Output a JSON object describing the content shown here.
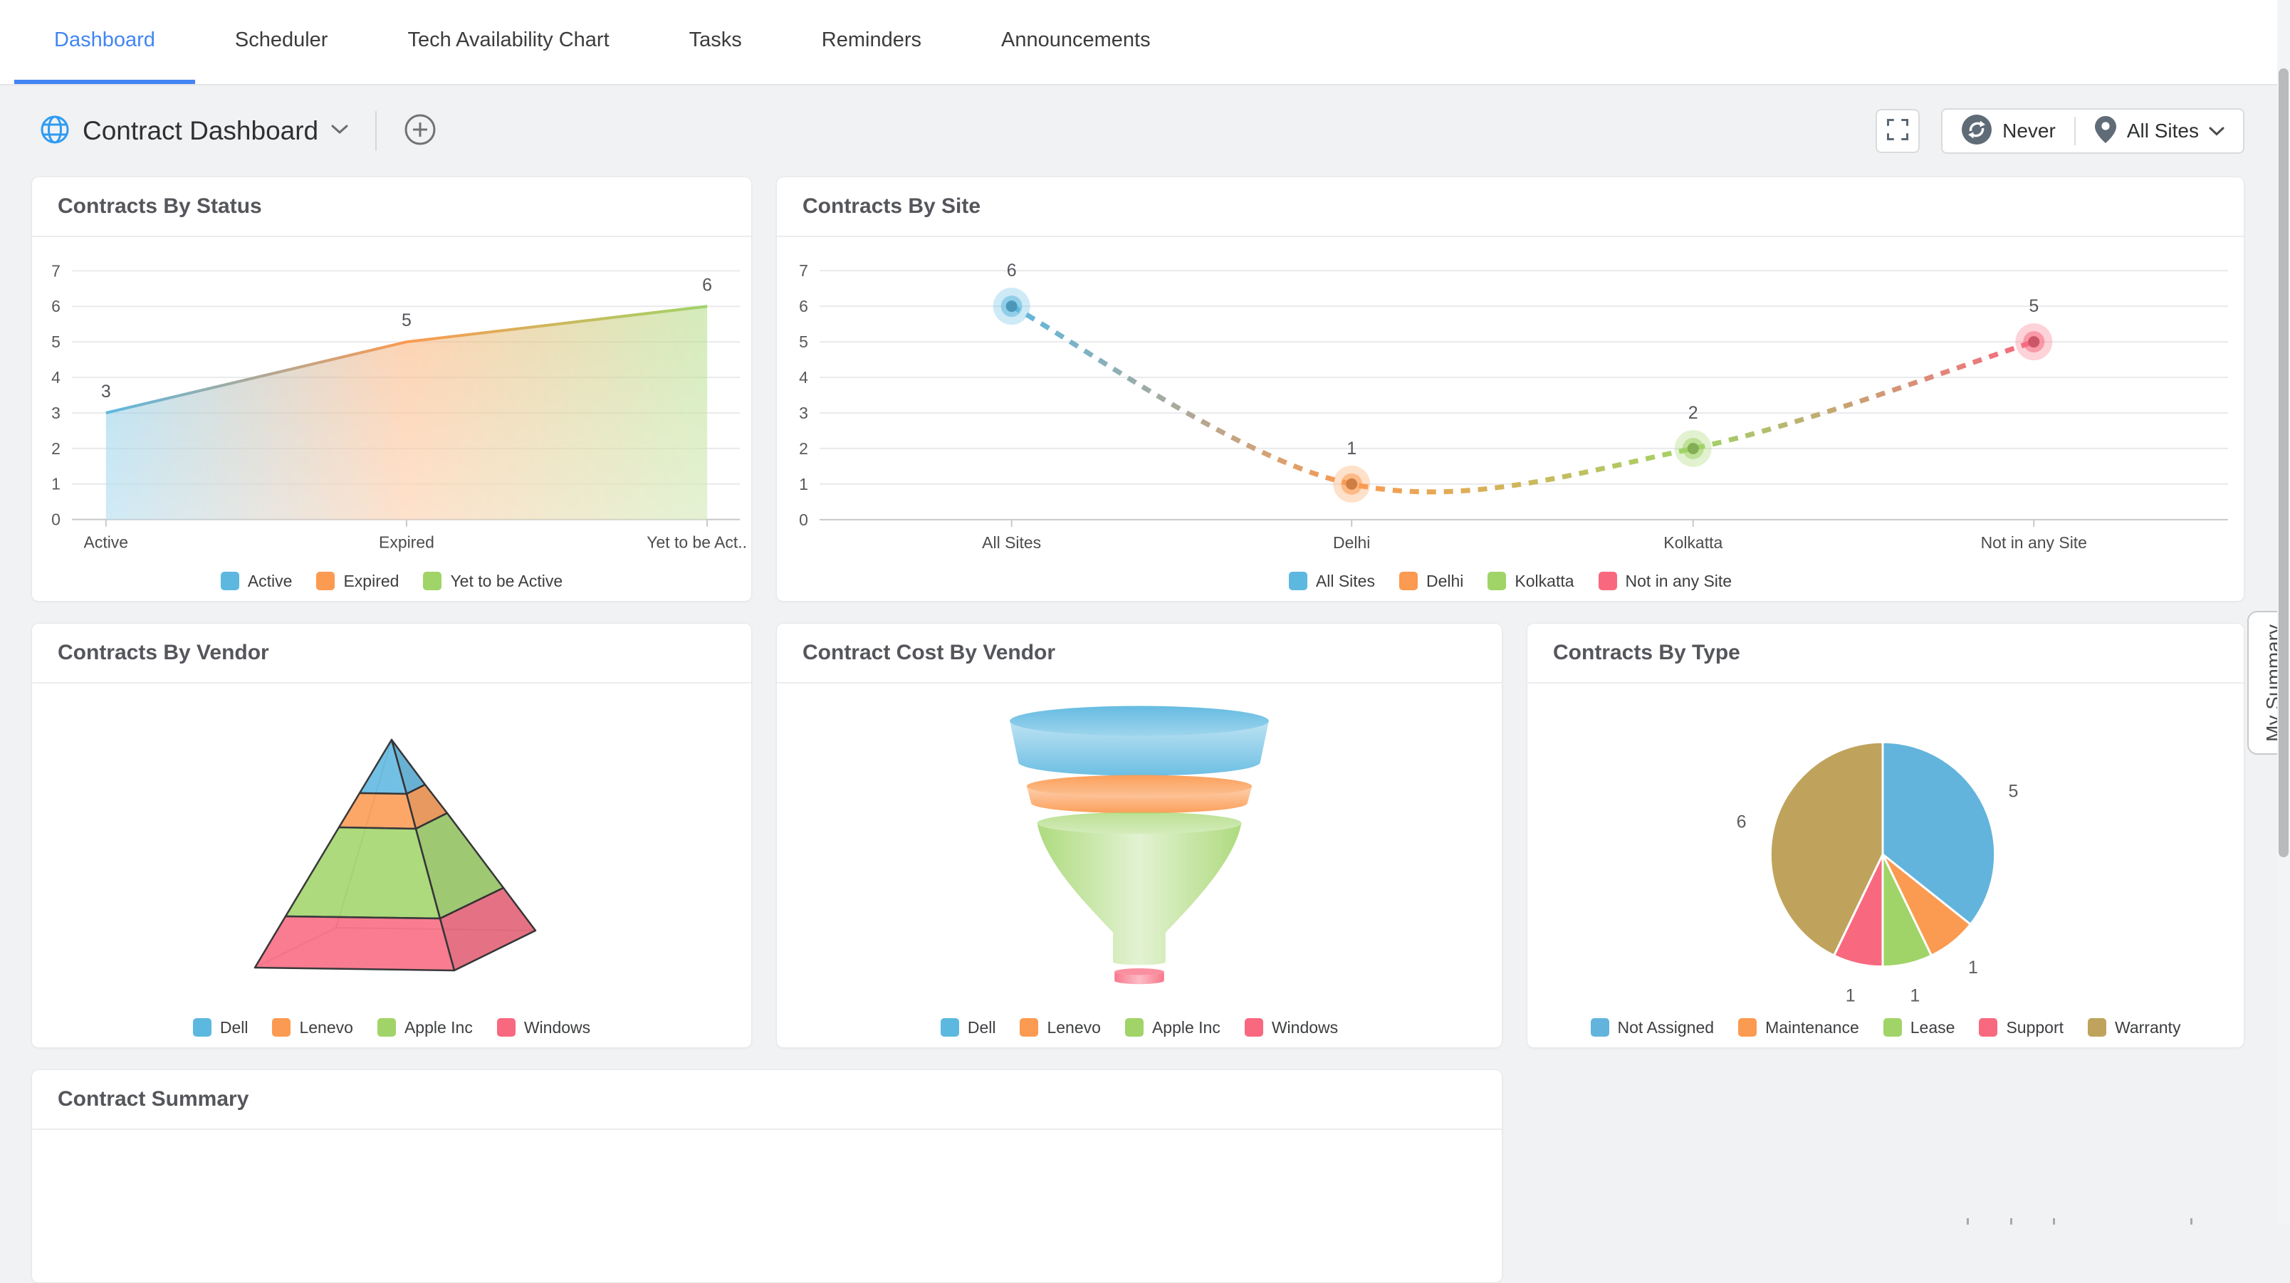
{
  "nav": {
    "tabs": [
      {
        "label": "Dashboard",
        "active": true
      },
      {
        "label": "Scheduler",
        "active": false
      },
      {
        "label": "Tech Availability Chart",
        "active": false
      },
      {
        "label": "Tasks",
        "active": false
      },
      {
        "label": "Reminders",
        "active": false
      },
      {
        "label": "Announcements",
        "active": false
      }
    ]
  },
  "toolbar": {
    "title": "Contract Dashboard",
    "refresh_label": "Never",
    "site_label": "All Sites",
    "icons": {
      "globe": "globe-icon",
      "chevron": "chevron-down-icon",
      "add": "plus-circle-icon",
      "fullscreen": "fullscreen-icon",
      "refresh": "refresh-icon",
      "pin": "location-pin-icon"
    }
  },
  "side_tab": {
    "label": "My Summary"
  },
  "palette": {
    "accent_blue": "#4285f4",
    "page_bg": "#f1f2f4",
    "card_title": "#55565b"
  },
  "chart_data": [
    {
      "id": "status",
      "type": "area",
      "title": "Contracts By Status",
      "categories": [
        "Active",
        "Expired",
        "Yet to be Active"
      ],
      "x_tick_labels": [
        "Active",
        "Expired",
        "Yet to be Act.."
      ],
      "values": [
        3,
        5,
        6
      ],
      "ylim": [
        0,
        7
      ],
      "y_ticks": [
        0,
        1,
        2,
        3,
        4,
        5,
        6,
        7
      ],
      "grid": true,
      "legend_position": "bottom",
      "series_colors": [
        "#5db8e0",
        "#fb9a51",
        "#a0d468"
      ]
    },
    {
      "id": "site",
      "type": "line",
      "line_style": "dotted",
      "title": "Contracts By Site",
      "categories": [
        "All Sites",
        "Delhi",
        "Kolkatta",
        "Not in any Site"
      ],
      "values": [
        6,
        1,
        2,
        5
      ],
      "ylim": [
        0,
        7
      ],
      "y_ticks": [
        0,
        1,
        2,
        3,
        4,
        5,
        6,
        7
      ],
      "grid": true,
      "legend_position": "bottom",
      "series_colors": [
        "#5db8e0",
        "#fb9a51",
        "#a0d468",
        "#f8697f"
      ]
    },
    {
      "id": "vendor",
      "type": "pyramid",
      "title": "Contracts By Vendor",
      "categories": [
        "Dell",
        "Lenevo",
        "Apple Inc",
        "Windows"
      ],
      "legend_position": "bottom",
      "series_colors": [
        "#5db8e0",
        "#fb9a51",
        "#a0d468",
        "#f8697f"
      ]
    },
    {
      "id": "cost",
      "type": "funnel",
      "title": "Contract Cost By Vendor",
      "categories": [
        "Dell",
        "Lenevo",
        "Apple Inc",
        "Windows"
      ],
      "legend_position": "bottom",
      "series_colors": [
        "#5db8e0",
        "#fb9a51",
        "#a0d468",
        "#f8697f"
      ]
    },
    {
      "id": "type",
      "type": "pie",
      "title": "Contracts By Type",
      "categories": [
        "Not Assigned",
        "Maintenance",
        "Lease",
        "Support",
        "Warranty"
      ],
      "values": [
        5,
        1,
        1,
        1,
        6
      ],
      "legend_position": "bottom",
      "series_colors": [
        "#62b4dc",
        "#fb9a51",
        "#a0d468",
        "#f8697f",
        "#bfa35c"
      ]
    },
    {
      "id": "summary",
      "type": "table",
      "title": "Contract Summary"
    }
  ]
}
